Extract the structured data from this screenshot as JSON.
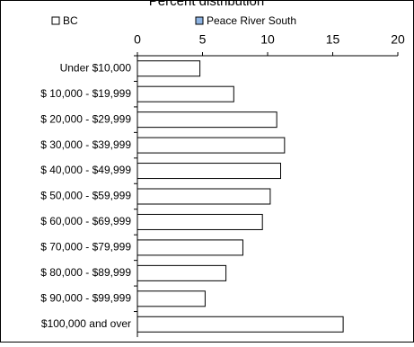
{
  "chart_data": {
    "type": "hbar",
    "title": "Percent distribution",
    "categories": [
      "Under $10,000",
      "$ 10,000 - $19,999",
      "$ 20,000 - $29,999",
      "$ 30,000 - $39,999",
      "$ 40,000 - $49,999",
      "$ 50,000 - $59,999",
      "$ 60,000 - $69,999",
      "$ 70,000 - $79,999",
      "$ 80,000 - $89,999",
      "$ 90,000 - $99,999",
      "$100,000 and over"
    ],
    "series": [
      {
        "name": "BC",
        "color": "#ffffff",
        "values": [
          4.8,
          7.4,
          10.7,
          11.3,
          11.0,
          10.2,
          9.6,
          8.1,
          6.8,
          5.2,
          15.8
        ]
      },
      {
        "name": "Peace River South",
        "color": "#8eb4e3",
        "values": [
          null,
          null,
          null,
          null,
          null,
          null,
          null,
          null,
          null,
          null,
          null
        ]
      }
    ],
    "xlim": [
      0,
      20
    ],
    "xticks": [
      0,
      5,
      10,
      15,
      20
    ]
  }
}
